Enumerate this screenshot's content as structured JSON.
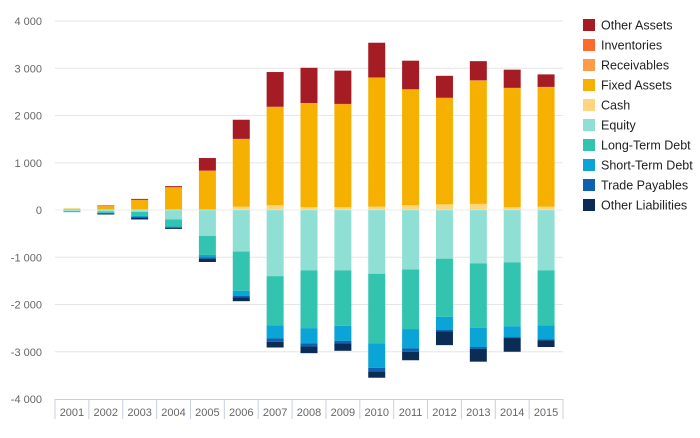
{
  "chart_data": {
    "type": "bar",
    "stacked": true,
    "title": "",
    "xlabel": "",
    "ylabel": "",
    "ylim": [
      -4000,
      4000
    ],
    "yticks": [
      -4000,
      -3000,
      -2000,
      -1000,
      0,
      1000,
      2000,
      3000,
      4000
    ],
    "ytick_labels": [
      "-4 000",
      "-3 000",
      "-2 000",
      "-1 000",
      "0",
      "1 000",
      "2 000",
      "3 000",
      "4 000"
    ],
    "grid": true,
    "legend_position": "right",
    "categories": [
      "2001",
      "2002",
      "2003",
      "2004",
      "2005",
      "2006",
      "2007",
      "2008",
      "2009",
      "2010",
      "2011",
      "2012",
      "2013",
      "2014",
      "2015"
    ],
    "asset_series": [
      {
        "name": "Cash",
        "color": "#ffd580",
        "values": [
          5,
          10,
          10,
          10,
          10,
          70,
          100,
          60,
          60,
          70,
          100,
          120,
          130,
          60,
          70
        ]
      },
      {
        "name": "Fixed Assets",
        "color": "#f5b000",
        "values": [
          25,
          70,
          200,
          460,
          820,
          1430,
          2080,
          2200,
          2180,
          2730,
          2450,
          2250,
          2610,
          2520,
          2530
        ]
      },
      {
        "name": "Receivables",
        "color": "#ff9c4a",
        "values": [
          0,
          5,
          5,
          10,
          5,
          5,
          5,
          5,
          5,
          5,
          5,
          5,
          5,
          5,
          5
        ]
      },
      {
        "name": "Inventories",
        "color": "#ff6a2c",
        "values": [
          0,
          0,
          0,
          5,
          0,
          0,
          0,
          0,
          0,
          0,
          0,
          0,
          0,
          0,
          0
        ]
      },
      {
        "name": "Other Assets",
        "color": "#a51c24",
        "values": [
          0,
          10,
          20,
          20,
          265,
          405,
          735,
          745,
          705,
          735,
          605,
          465,
          405,
          385,
          265
        ]
      }
    ],
    "liability_series": [
      {
        "name": "Equity",
        "color": "#8fdfd5",
        "values": [
          -20,
          -30,
          -40,
          -200,
          -550,
          -880,
          -1400,
          -1280,
          -1280,
          -1350,
          -1260,
          -1030,
          -1130,
          -1110,
          -1280
        ]
      },
      {
        "name": "Long-Term Debt",
        "color": "#33c4b0",
        "values": [
          -15,
          -30,
          -80,
          -150,
          -400,
          -830,
          -1040,
          -1220,
          -1170,
          -1470,
          -1260,
          -1230,
          -1360,
          -1350,
          -1160
        ]
      },
      {
        "name": "Short-Term Debt",
        "color": "#0aa5d6",
        "values": [
          -5,
          -10,
          -30,
          -20,
          -50,
          -110,
          -280,
          -320,
          -320,
          -520,
          -410,
          -280,
          -410,
          -230,
          -300
        ]
      },
      {
        "name": "Trade Payables",
        "color": "#1060b0",
        "values": [
          0,
          -5,
          -10,
          -10,
          -30,
          -30,
          -70,
          -70,
          -50,
          -80,
          -70,
          -30,
          -40,
          -20,
          -20
        ]
      },
      {
        "name": "Other Liabilities",
        "color": "#0b2c55",
        "values": [
          0,
          -20,
          -40,
          -20,
          -70,
          -80,
          -120,
          -140,
          -160,
          -130,
          -180,
          -290,
          -270,
          -290,
          -140
        ]
      }
    ],
    "legend": [
      {
        "name": "Other Assets",
        "color": "#a51c24"
      },
      {
        "name": "Inventories",
        "color": "#ff6a2c"
      },
      {
        "name": "Receivables",
        "color": "#ff9c4a"
      },
      {
        "name": "Fixed Assets",
        "color": "#f5b000"
      },
      {
        "name": "Cash",
        "color": "#ffd580"
      },
      {
        "name": "Equity",
        "color": "#8fdfd5"
      },
      {
        "name": "Long-Term Debt",
        "color": "#33c4b0"
      },
      {
        "name": "Short-Term Debt",
        "color": "#0aa5d6"
      },
      {
        "name": "Trade Payables",
        "color": "#1060b0"
      },
      {
        "name": "Other Liabilities",
        "color": "#0b2c55"
      }
    ]
  }
}
